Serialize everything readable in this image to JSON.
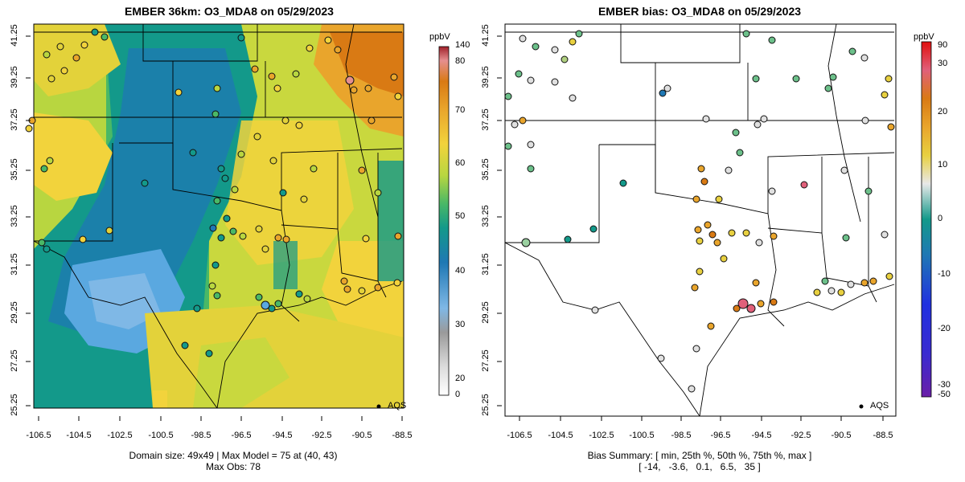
{
  "left_panel": {
    "title": "EMBER 36km: O3_MDA8 on 05/29/2023",
    "footer_line1": "Domain size: 49x49 | Max Model = 75 at (40, 43)",
    "footer_line2": "Max Obs: 78",
    "legend_label": "AQS",
    "colorbar_unit": "ppbV",
    "colorbar_ticks": [
      "140",
      "80",
      "70",
      "60",
      "50",
      "40",
      "30",
      "20",
      "0"
    ]
  },
  "right_panel": {
    "title": "EMBER bias: O3_MDA8 on 05/29/2023",
    "footer_line1": "Bias Summary: [ min, 25th %, 50th %, 75th %, max ]",
    "footer_line2": "[ -14,   -3.6,   0.1,   6.5,   35 ]",
    "legend_label": "AQS",
    "colorbar_unit": "ppbV",
    "colorbar_ticks": [
      "90",
      "30",
      "20",
      "10",
      "0",
      "-10",
      "-20",
      "-30",
      "-50"
    ]
  },
  "axes": {
    "x_ticks": [
      "-106.5",
      "-104.5",
      "-102.5",
      "-100.5",
      "-98.5",
      "-96.5",
      "-94.5",
      "-92.5",
      "-90.5",
      "-88.5"
    ],
    "y_ticks": [
      "41.25",
      "39.25",
      "37.25",
      "35.25",
      "33.25",
      "31.25",
      "29.25",
      "27.25",
      "25.25"
    ]
  },
  "colors": {
    "model_scale": [
      "#ffffff",
      "#bdbdbd",
      "#5aa8e0",
      "#1f78b4",
      "#13998a",
      "#4ab866",
      "#b8d640",
      "#f2d33c",
      "#e9a52c",
      "#d97a14",
      "#e58f8f",
      "#a0202a"
    ],
    "bias_scale": [
      "#6a1fa8",
      "#2030e0",
      "#1f78b4",
      "#13998a",
      "#6cc08a",
      "#e0e0e0",
      "#e8d040",
      "#e9a52c",
      "#d97a14",
      "#e0607a",
      "#e01010"
    ]
  }
}
